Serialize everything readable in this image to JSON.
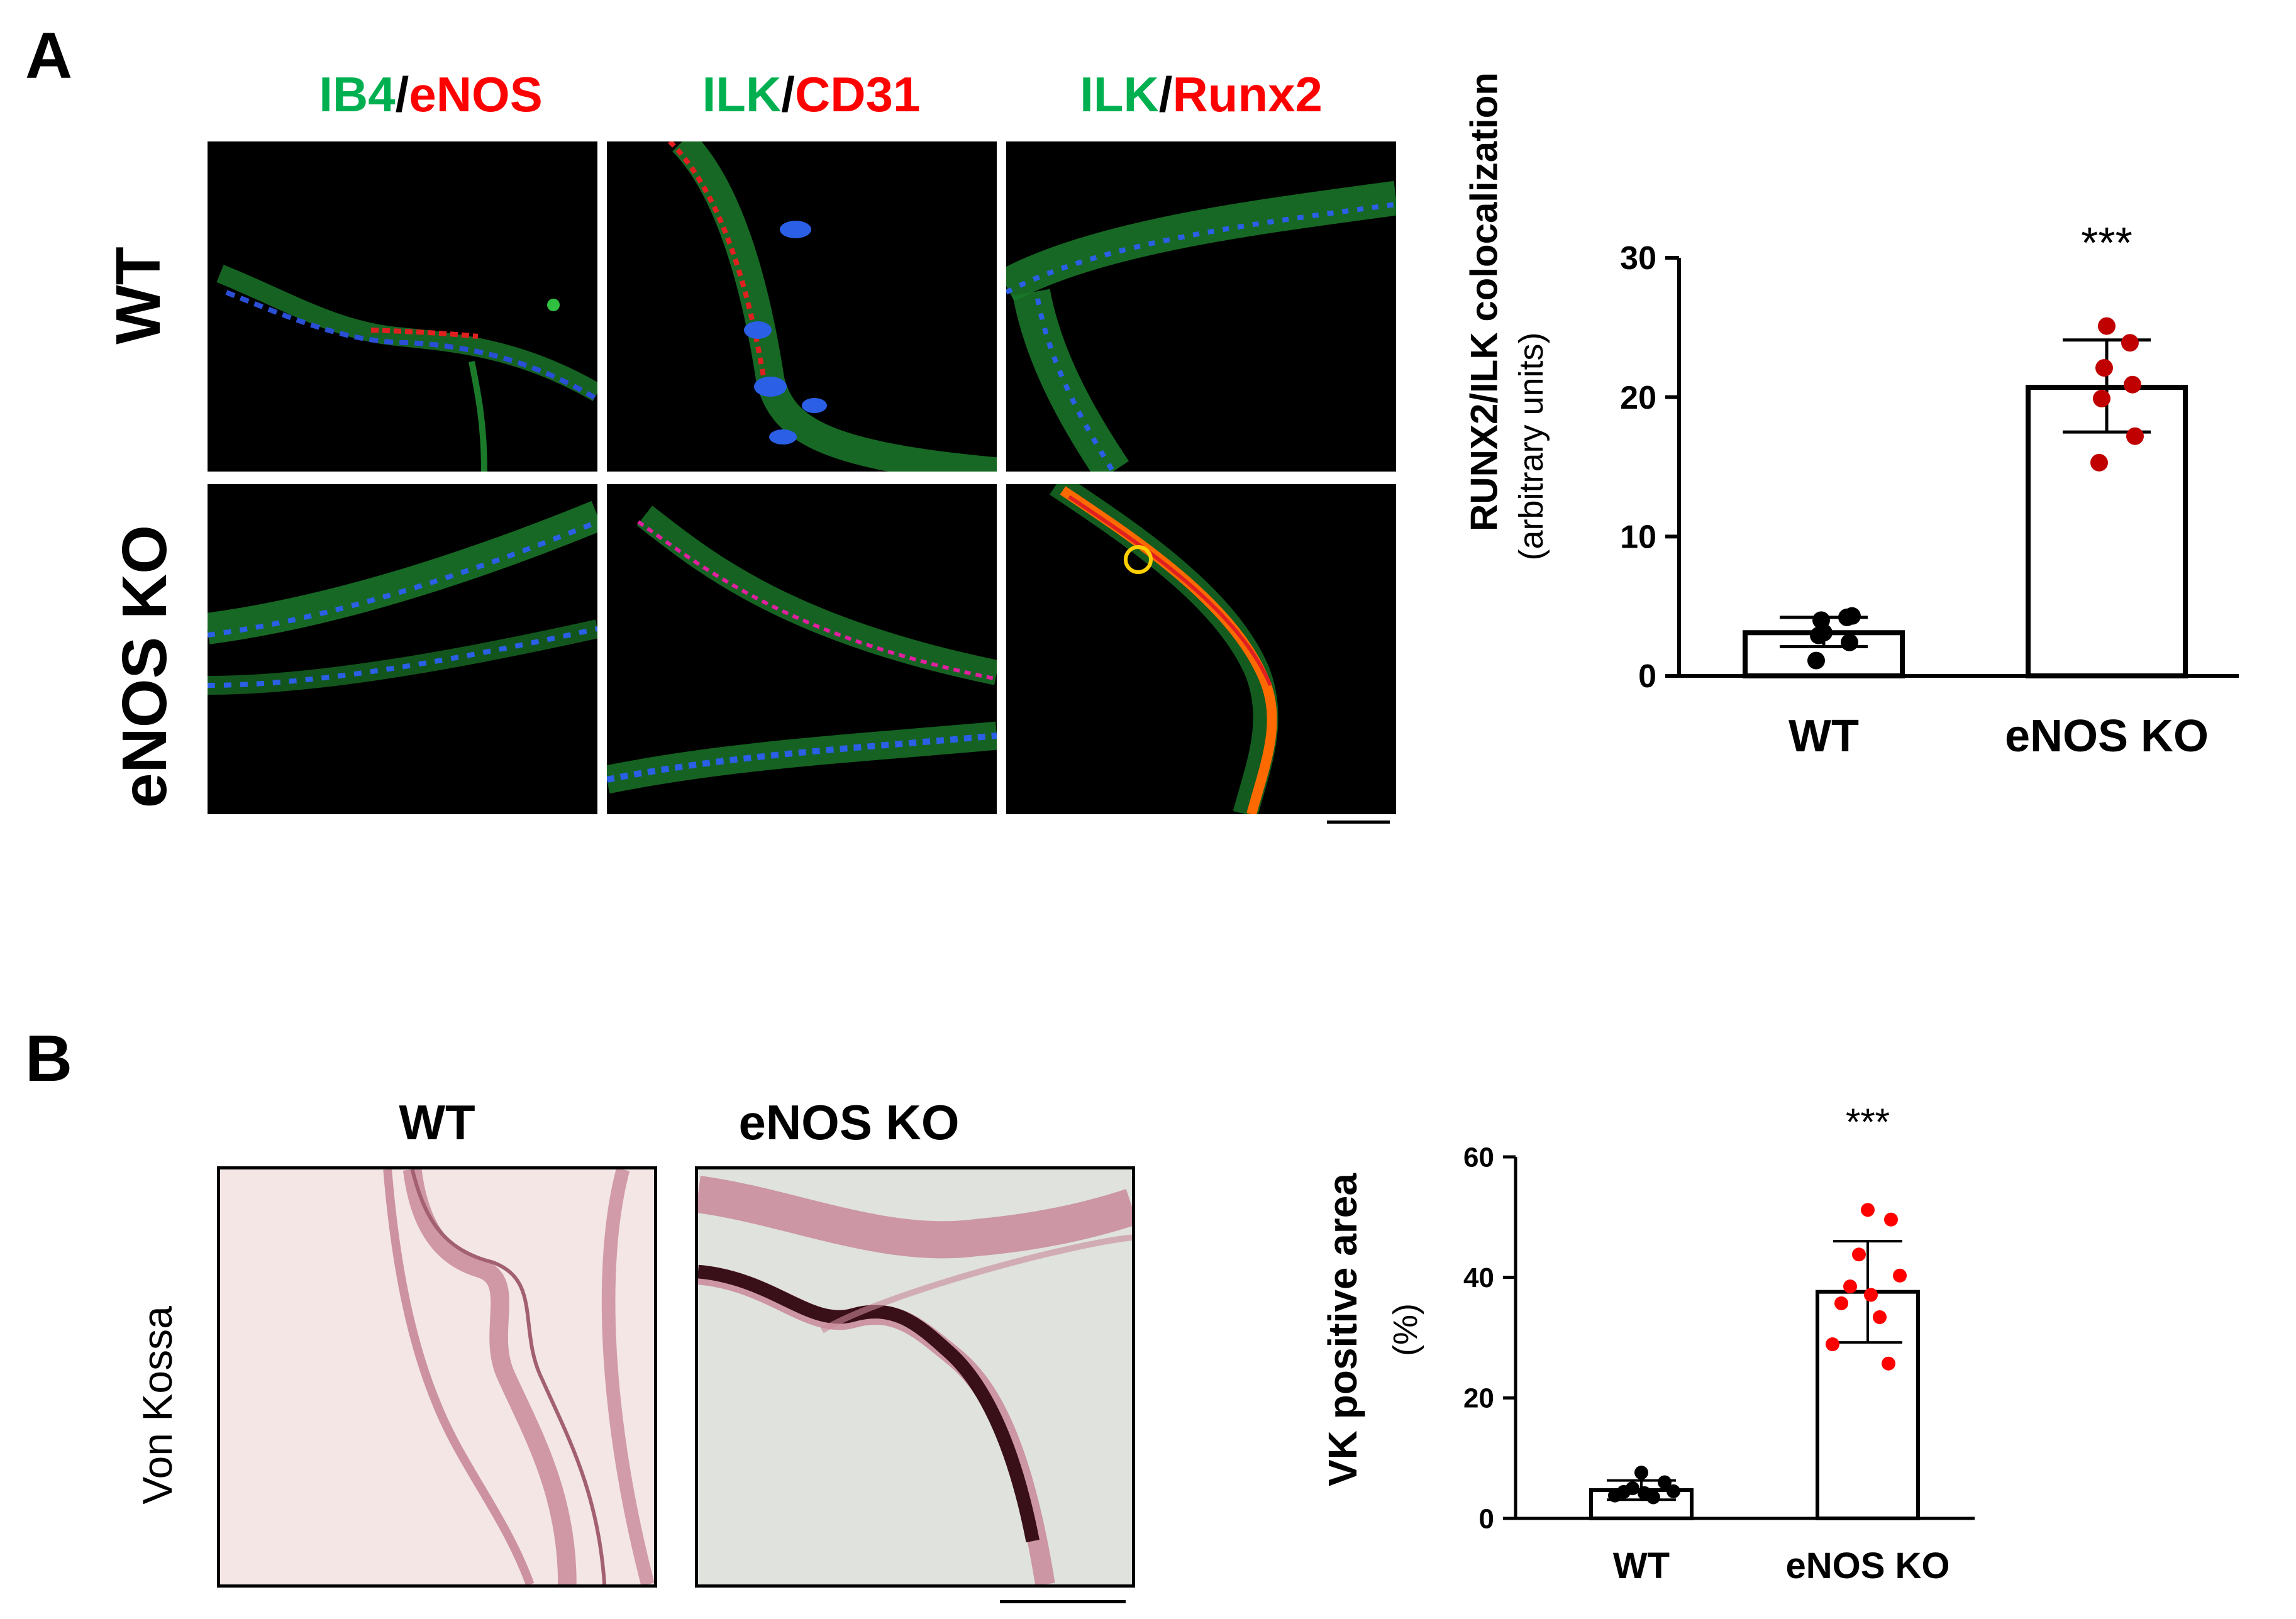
{
  "panel_a": {
    "label": "A",
    "headers": [
      {
        "green": "IB4",
        "sep": "/",
        "red": "eNOS"
      },
      {
        "green": "ILK",
        "sep": "/",
        "red": "CD31"
      },
      {
        "green": "ILK",
        "sep": "/",
        "red": "Runx2"
      }
    ],
    "row_labels": [
      "WT",
      "eNOS KO"
    ]
  },
  "panel_b": {
    "label": "B",
    "headers": [
      "WT",
      "eNOS KO"
    ],
    "row_label": "Von Kossa"
  },
  "chart_data": [
    {
      "type": "bar",
      "categories": [
        "WT",
        "eNOS KO"
      ],
      "values": [
        3.1,
        20.7
      ],
      "errors": [
        [
          2.1,
          4.2
        ],
        [
          17.5,
          24.1
        ]
      ],
      "points": [
        [
          3.1,
          4.2,
          4.0,
          2.4,
          2.9,
          4.3,
          1.1
        ],
        [
          25.1,
          23.9,
          22.1,
          20.9,
          19.9,
          17.2,
          15.3
        ]
      ],
      "point_color": [
        "#000000",
        "#c00000"
      ],
      "title": "",
      "ylabel": "RUNX2/ILK colocalization",
      "ylabel_sub": "(arbitrary units)",
      "ylim": [
        0,
        30
      ],
      "yticks": [
        "0",
        "10",
        "20",
        "30"
      ],
      "significance": "***"
    },
    {
      "type": "bar",
      "categories": [
        "WT",
        "eNOS KO"
      ],
      "values": [
        4.7,
        37.6
      ],
      "errors": [
        [
          3.1,
          6.3
        ],
        [
          29.2,
          46.0
        ]
      ],
      "points": [
        [
          7.6,
          6.0,
          5.0,
          4.5,
          4.4,
          4.2,
          3.8,
          3.5
        ],
        [
          51.2,
          49.6,
          43.8,
          40.3,
          38.5,
          37.1,
          35.7,
          33.4,
          28.9,
          25.7
        ]
      ],
      "point_color": [
        "#000000",
        "#ff0000"
      ],
      "title": "",
      "ylabel": "VK positive area",
      "ylabel_sub": "(%)",
      "ylim": [
        0,
        60
      ],
      "yticks": [
        "0",
        "20",
        "40",
        "60"
      ],
      "significance": "***"
    }
  ]
}
